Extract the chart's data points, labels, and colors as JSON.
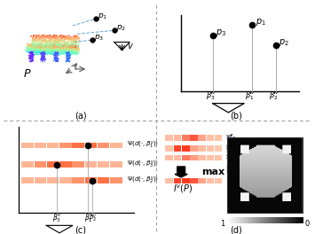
{
  "white": "#ffffff",
  "dashed_color": "#999999",
  "blue_dashed": "#5599cc",
  "axis_color": "#555555",
  "panel_labels": [
    "(a)",
    "(b)",
    "(c)",
    "(d)"
  ],
  "orange_colors": [
    "#fce5d0",
    "#f5b98a",
    "#d4722a",
    "#c05810"
  ],
  "gray_axis": "#aaaaaa",
  "brace_color": "#5577cc"
}
